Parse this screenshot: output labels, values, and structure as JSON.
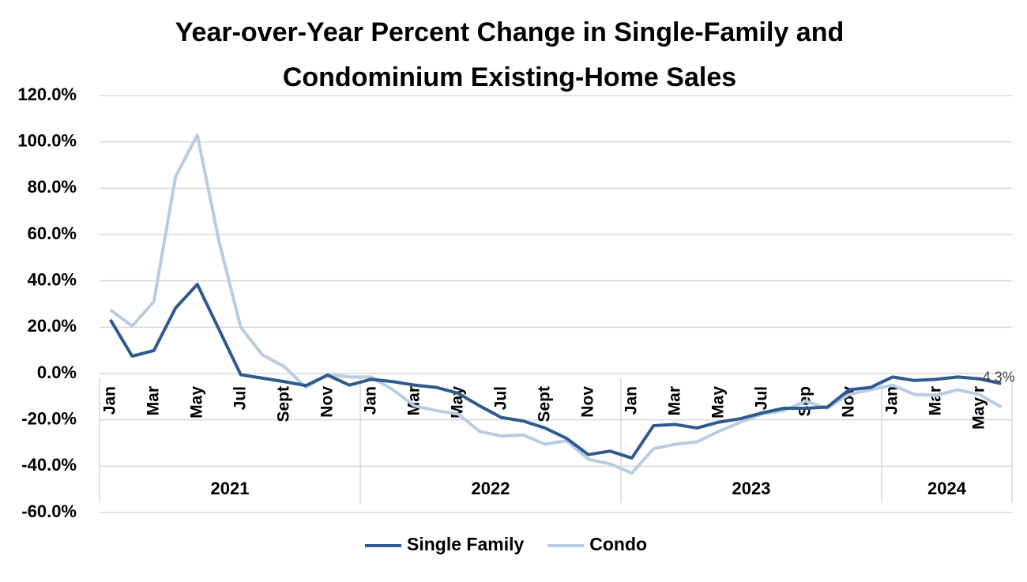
{
  "chart_data": {
    "type": "line",
    "title": [
      "Year-over-Year Percent Change in Single-Family and",
      "Condominium Existing-Home Sales"
    ],
    "categories": [
      "Jan",
      null,
      "Mar",
      null,
      "May",
      null,
      "Jul",
      null,
      "Sept",
      null,
      "Nov",
      null,
      "Jan",
      null,
      "Mar",
      null,
      "May",
      null,
      "Jul",
      null,
      "Sept",
      null,
      "Nov",
      null,
      "Jan",
      null,
      "Mar",
      null,
      "May",
      null,
      "Jul",
      null,
      "Sep",
      null,
      "Nov",
      null,
      "Jan",
      null,
      "Mar",
      null,
      "May r",
      null
    ],
    "groups": [
      "2021",
      "2022",
      "2023",
      "2024"
    ],
    "series": [
      {
        "name": "Single Family",
        "color": "#2e5a8e",
        "values": [
          23.2,
          7.5,
          9.9,
          28.3,
          38.5,
          19,
          -0.5,
          -2,
          -3.5,
          -5.2,
          -0.7,
          -5,
          -2.5,
          -3.5,
          -5,
          -6,
          -8.5,
          -14,
          -19,
          -20.5,
          -23.5,
          -28,
          -35,
          -33.5,
          -36.5,
          -22.5,
          -22,
          -23.5,
          -21,
          -19.5,
          -17,
          -15,
          -15,
          -14.5,
          -7,
          -6,
          -1.5,
          -3,
          -2.5,
          -1.5,
          -2.3,
          -4.3
        ]
      },
      {
        "name": "Condo",
        "color": "#b8cce4",
        "values": [
          27.5,
          20.5,
          31,
          85,
          103,
          57,
          20,
          8,
          3,
          -6,
          -0.3,
          -1.5,
          -1.5,
          -7,
          -14,
          -16,
          -17.5,
          -25,
          -27,
          -26.5,
          -30.5,
          -29,
          -37,
          -39,
          -43,
          -32.5,
          -30.5,
          -29.5,
          -25,
          -21,
          -17.5,
          -16,
          -12,
          -15,
          -9,
          -7,
          -5,
          -9,
          -9.5,
          -7,
          -9,
          -14.5
        ]
      }
    ],
    "annotation": "-4.3%",
    "ylim": [
      -60,
      120
    ],
    "yticks": [
      {
        "value": -60,
        "label": "-60.0%"
      },
      {
        "value": -40,
        "label": "-40.0%"
      },
      {
        "value": -20,
        "label": "-20.0%"
      },
      {
        "value": 0,
        "label": "0.0%"
      },
      {
        "value": 20,
        "label": "20.0%"
      },
      {
        "value": 40,
        "label": "40.0%"
      },
      {
        "value": 60,
        "label": "60.0%"
      },
      {
        "value": 80,
        "label": "80.0%"
      },
      {
        "value": 100,
        "label": "100.0%"
      },
      {
        "value": 120,
        "label": "120.0%"
      }
    ],
    "grid": true,
    "legend": "bottom"
  }
}
